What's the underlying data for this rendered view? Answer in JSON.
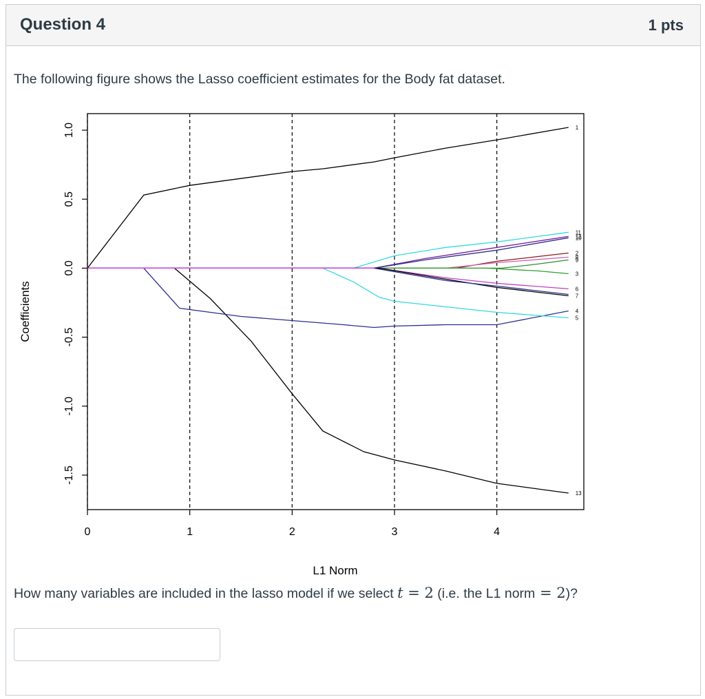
{
  "question": {
    "title": "Question 4",
    "points": "1 pts",
    "prompt": "The following figure shows the Lasso coefficient estimates for the Body fat dataset.",
    "ask_before": "How many variables are included in the lasso model if we select",
    "ask_var": "t",
    "ask_eq1": " = 2",
    "ask_mid": " (i.e. the L1 norm",
    "ask_eq2": " = 2",
    "ask_after": ")?",
    "answer_value": ""
  },
  "chart_data": {
    "type": "line",
    "xlabel": "L1 Norm",
    "ylabel": "Coefficients",
    "xlim": [
      0,
      4.85
    ],
    "ylim": [
      -1.75,
      1.12
    ],
    "x_ticks": [
      0,
      1,
      2,
      3,
      4
    ],
    "y_ticks": [
      -1.5,
      -1.0,
      -0.5,
      0.0,
      0.5,
      1.0
    ],
    "x_tick_labels": [
      "0",
      "1",
      "2",
      "3",
      "4"
    ],
    "y_tick_labels": [
      "-1.5",
      "-1.0",
      "-0.5",
      "0.0",
      "0.5",
      "1.0"
    ],
    "vertical_dashed_lines": [
      0,
      1,
      2,
      3,
      4
    ],
    "grid": false,
    "series": [
      {
        "label": "1",
        "color": "#000000",
        "points": [
          [
            0,
            0
          ],
          [
            0.55,
            0.53
          ],
          [
            1,
            0.6
          ],
          [
            2,
            0.7
          ],
          [
            2.3,
            0.72
          ],
          [
            2.8,
            0.77
          ],
          [
            3,
            0.8
          ],
          [
            3.5,
            0.87
          ],
          [
            4,
            0.93
          ],
          [
            4.7,
            1.02
          ]
        ]
      },
      {
        "label": "13",
        "color": "#000000",
        "points": [
          [
            0,
            0
          ],
          [
            0.85,
            0
          ],
          [
            1.2,
            -0.22
          ],
          [
            1.6,
            -0.53
          ],
          [
            2,
            -0.91
          ],
          [
            2.3,
            -1.18
          ],
          [
            2.7,
            -1.33
          ],
          [
            3,
            -1.39
          ],
          [
            3.5,
            -1.47
          ],
          [
            4,
            -1.56
          ],
          [
            4.7,
            -1.63
          ]
        ]
      },
      {
        "label": "4",
        "color": "#2d2d8f",
        "points": [
          [
            0,
            0
          ],
          [
            0.55,
            0
          ],
          [
            0.9,
            -0.29
          ],
          [
            1.5,
            -0.35
          ],
          [
            2,
            -0.38
          ],
          [
            2.5,
            -0.41
          ],
          [
            2.8,
            -0.43
          ],
          [
            3,
            -0.42
          ],
          [
            3.5,
            -0.41
          ],
          [
            4,
            -0.41
          ],
          [
            4.7,
            -0.31
          ]
        ]
      },
      {
        "label": "5",
        "color": "#33d9e0",
        "points": [
          [
            0,
            0
          ],
          [
            2.3,
            0
          ],
          [
            2.6,
            -0.1
          ],
          [
            2.85,
            -0.21
          ],
          [
            3,
            -0.24
          ],
          [
            3.5,
            -0.28
          ],
          [
            4,
            -0.32
          ],
          [
            4.7,
            -0.36
          ]
        ]
      },
      {
        "label": "11",
        "color": "#33d9e0",
        "points": [
          [
            0,
            0
          ],
          [
            2.6,
            0
          ],
          [
            3,
            0.09
          ],
          [
            3.5,
            0.15
          ],
          [
            4,
            0.19
          ],
          [
            4.7,
            0.26
          ]
        ]
      },
      {
        "label": "12",
        "color": "#7a1f9a",
        "points": [
          [
            0,
            0
          ],
          [
            2.8,
            0
          ],
          [
            3.3,
            0.07
          ],
          [
            4,
            0.15
          ],
          [
            4.7,
            0.23
          ]
        ]
      },
      {
        "label": "10",
        "color": "#2d2d8f",
        "points": [
          [
            0,
            0
          ],
          [
            2.8,
            0
          ],
          [
            3.3,
            0.06
          ],
          [
            4,
            0.13
          ],
          [
            4.7,
            0.22
          ]
        ]
      },
      {
        "label": "2",
        "color": "#8b1a1a",
        "points": [
          [
            0,
            0
          ],
          [
            3.6,
            0
          ],
          [
            4,
            0.05
          ],
          [
            4.7,
            0.11
          ]
        ]
      },
      {
        "label": "8",
        "color": "#d25fb3",
        "points": [
          [
            0,
            0
          ],
          [
            3.5,
            0
          ],
          [
            4,
            0.04
          ],
          [
            4.7,
            0.08
          ]
        ]
      },
      {
        "label": "9",
        "color": "#2f8f2f",
        "points": [
          [
            0,
            0
          ],
          [
            4.05,
            0
          ],
          [
            4.4,
            0.03
          ],
          [
            4.7,
            0.06
          ]
        ]
      },
      {
        "label": "3",
        "color": "#2f9f2f",
        "points": [
          [
            0,
            0
          ],
          [
            3.9,
            0
          ],
          [
            4.4,
            -0.02
          ],
          [
            4.7,
            -0.04
          ]
        ]
      },
      {
        "label": "6",
        "color": "#c040c0",
        "points": [
          [
            0,
            0
          ],
          [
            2.85,
            0
          ],
          [
            3.5,
            -0.07
          ],
          [
            4,
            -0.11
          ],
          [
            4.7,
            -0.15
          ]
        ]
      },
      {
        "label": "7",
        "color": "#000000",
        "points": [
          [
            0,
            0
          ],
          [
            2.85,
            0
          ],
          [
            3.5,
            -0.08
          ],
          [
            4,
            -0.14
          ],
          [
            4.7,
            -0.2
          ]
        ]
      },
      {
        "label": "",
        "color": "#2d2d8f",
        "points": [
          [
            0,
            0
          ],
          [
            2.8,
            0
          ],
          [
            3.5,
            -0.09
          ],
          [
            4,
            -0.13
          ],
          [
            4.7,
            -0.19
          ]
        ]
      },
      {
        "label": "",
        "color": "#e040e0",
        "points": [
          [
            0,
            0
          ],
          [
            2.8,
            0
          ]
        ]
      }
    ],
    "right_labels": [
      {
        "text": "1",
        "y": 1.02
      },
      {
        "text": "11",
        "y": 0.26
      },
      {
        "text": "12",
        "y": 0.23
      },
      {
        "text": "10",
        "y": 0.22
      },
      {
        "text": "2",
        "y": 0.11
      },
      {
        "text": "8",
        "y": 0.08
      },
      {
        "text": "9",
        "y": 0.06
      },
      {
        "text": "3",
        "y": -0.04
      },
      {
        "text": "6",
        "y": -0.15
      },
      {
        "text": "7",
        "y": -0.2
      },
      {
        "text": "4",
        "y": -0.31
      },
      {
        "text": "5",
        "y": -0.36
      },
      {
        "text": "13",
        "y": -1.63
      }
    ]
  }
}
